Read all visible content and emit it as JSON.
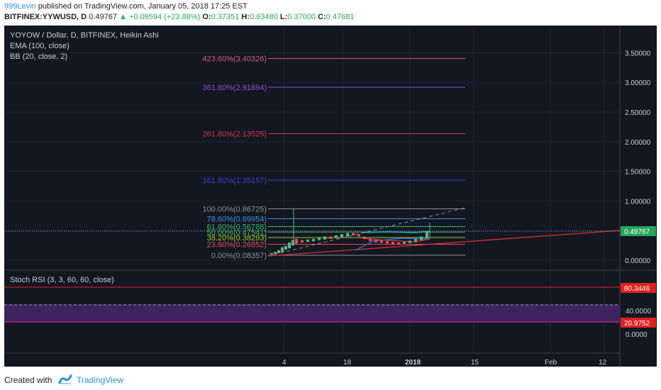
{
  "header": {
    "author": "999Levin",
    "published_text": "published on TradingView.com, January 05, 2018 17:25 EST",
    "symbol": "BITFINEX:YYWUSD, D",
    "last": "0.49767",
    "change": "+0.09594 (+23.88%)",
    "o_label": "O:",
    "o_value": "0.37351",
    "h_label": "H:",
    "h_value": "0.63480",
    "l_label": "L:",
    "l_value": "0.37000",
    "c_label": "C:",
    "c_value": "0.47681"
  },
  "chart": {
    "title": "YOYOW / Dollar, D, BITFINEX, Heikin Ashi",
    "indicator_ema": "EMA (100, close)",
    "indicator_bb": "BB (20, close, 2)",
    "price_axis": [
      "3.50000",
      "3.00000",
      "2.50000",
      "2.00000",
      "1.50000",
      "1.00000",
      "0.50000",
      "0.00000"
    ],
    "last_price_tag": "0.49767",
    "fib_levels": [
      {
        "label": "423.60%(3.40326)",
        "value": 3.40326,
        "color": "#d25a8c"
      },
      {
        "label": "361.80%(2.91894)",
        "value": 2.91894,
        "color": "#8d4fd1"
      },
      {
        "label": "261.80%(2.13525)",
        "value": 2.13525,
        "color": "#d23a4a"
      },
      {
        "label": "161.80%(1.35157)",
        "value": 1.35157,
        "color": "#3a3fd0"
      },
      {
        "label": "100.00%(0.86725)",
        "value": 0.86725,
        "color": "#8a8f99"
      },
      {
        "label": "78.60%(0.69954)",
        "value": 0.69954,
        "color": "#3d8fd6"
      },
      {
        "label": "61.80%(0.56788)",
        "value": 0.56788,
        "color": "#3cb371"
      },
      {
        "label": "50.00%(0.47541)",
        "value": 0.47541,
        "color": "#4cae4c"
      },
      {
        "label": "38.20%(0.38293)",
        "value": 0.38293,
        "color": "#9acd32"
      },
      {
        "label": "23.60%(0.26852)",
        "value": 0.26852,
        "color": "#e04f4f"
      },
      {
        "label": "0.00%(0.08357)",
        "value": 0.08357,
        "color": "#8a8f99"
      }
    ],
    "stoch_title": "Stoch RSI (3, 3, 60, 60, close)",
    "stoch_axis": [
      "40.0000",
      "20.0000",
      "0.0000"
    ],
    "stoch_tag_k": "80.3446",
    "stoch_tag_d": "20.9752",
    "time_axis": [
      "4",
      "18",
      "2018",
      "15",
      "Feb",
      "12"
    ]
  },
  "footer": {
    "created_with": "Created with",
    "brand": "TradingView"
  }
}
